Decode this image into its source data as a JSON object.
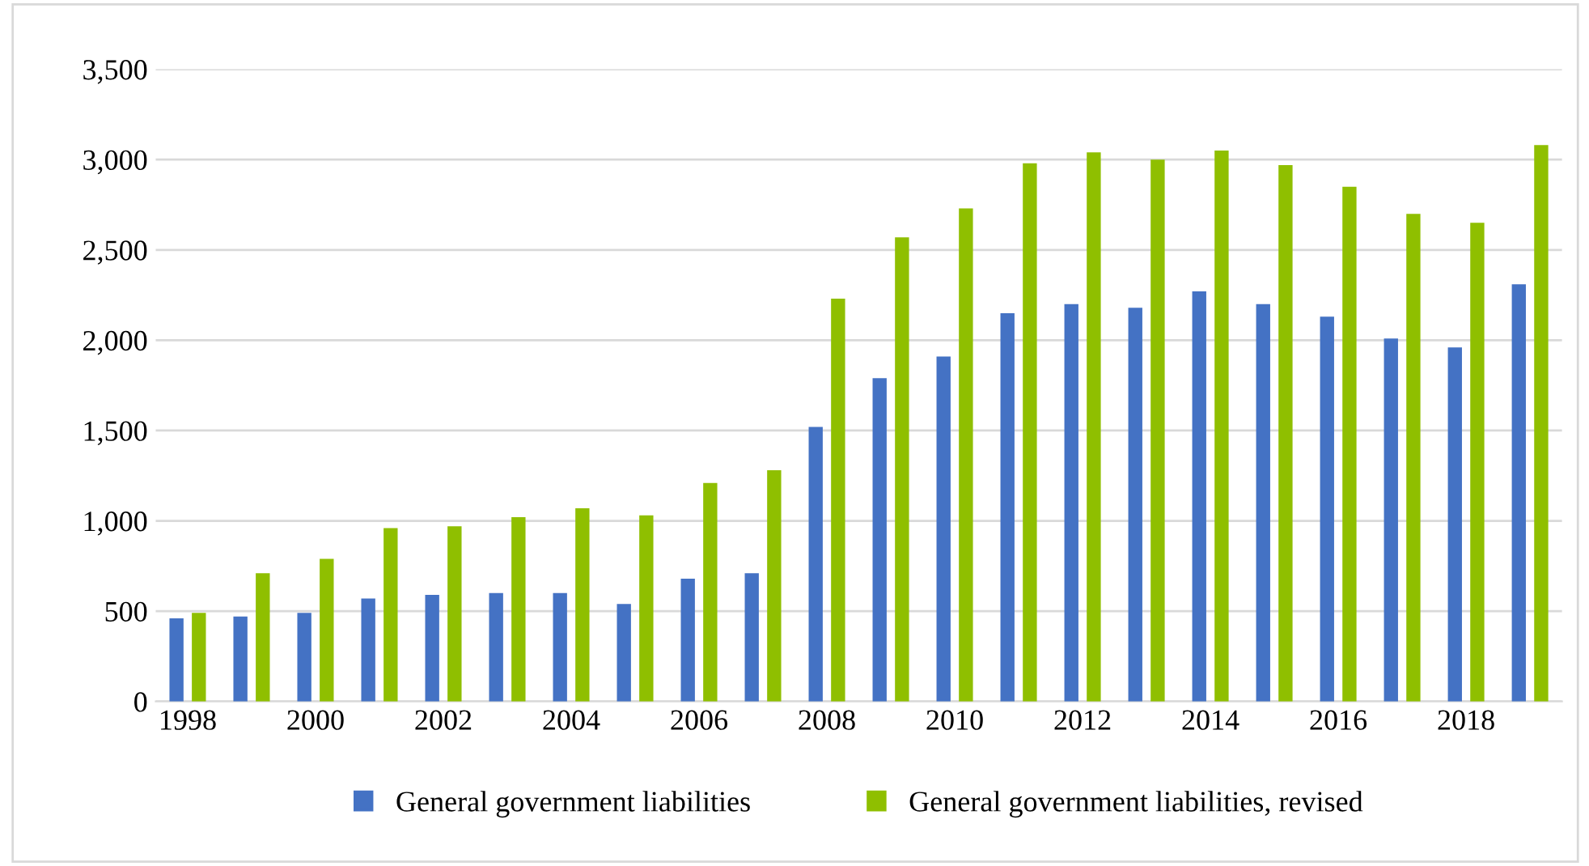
{
  "chart_data": {
    "type": "bar",
    "categories": [
      "1998",
      null,
      "2000",
      null,
      "2002",
      null,
      "2004",
      null,
      "2006",
      null,
      "2008",
      null,
      "2010",
      null,
      "2012",
      null,
      "2014",
      null,
      "2016",
      null,
      "2018",
      null
    ],
    "series": [
      {
        "name": "General government liabilities",
        "color": "#4472c4",
        "values": [
          460,
          470,
          490,
          570,
          590,
          600,
          600,
          540,
          680,
          710,
          1520,
          1790,
          1910,
          2150,
          2200,
          2180,
          2270,
          2200,
          2130,
          2010,
          1960,
          2310
        ]
      },
      {
        "name": "General government liabilities, revised",
        "color": "#8fbf00",
        "values": [
          490,
          710,
          790,
          960,
          970,
          1020,
          1070,
          1030,
          1210,
          1280,
          2230,
          2570,
          2730,
          2980,
          3040,
          3000,
          3050,
          2970,
          2850,
          2700,
          2650,
          3080
        ]
      }
    ],
    "ylim": [
      0,
      3500
    ],
    "yticks": [
      {
        "value": 0,
        "label": "0"
      },
      {
        "value": 500,
        "label": "500"
      },
      {
        "value": 1000,
        "label": "1,000"
      },
      {
        "value": 1500,
        "label": "1,500"
      },
      {
        "value": 2000,
        "label": "2,000"
      },
      {
        "value": 2500,
        "label": "2,500"
      },
      {
        "value": 3000,
        "label": "3,000"
      },
      {
        "value": 3500,
        "label": "3,500"
      }
    ],
    "grid": "y",
    "legend": "bottom"
  }
}
